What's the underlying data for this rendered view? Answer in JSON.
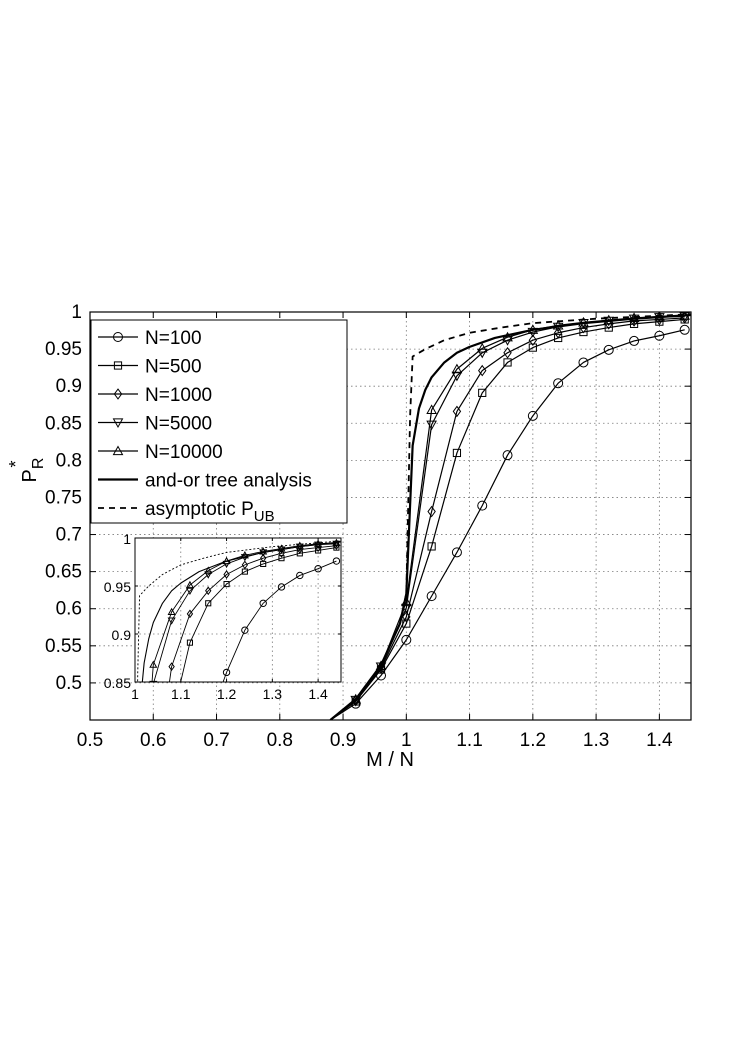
{
  "chart_data": {
    "type": "line",
    "title": "",
    "xlabel": "M / N",
    "ylabel_main": "P",
    "ylabel_sub": "R",
    "ylabel_sup": "*",
    "xlim": [
      0.5,
      1.45
    ],
    "ylim": [
      0.45,
      1.0
    ],
    "xticks": [
      0.5,
      0.6,
      0.7,
      0.8,
      0.9,
      1.0,
      1.1,
      1.2,
      1.3,
      1.4
    ],
    "xtick_labels": [
      "0.5",
      "0.6",
      "0.7",
      "0.8",
      "0.9",
      "1",
      "1.1",
      "1.2",
      "1.3",
      "1.4"
    ],
    "yticks": [
      0.5,
      0.55,
      0.6,
      0.65,
      0.7,
      0.75,
      0.8,
      0.85,
      0.9,
      0.95,
      1.0
    ],
    "ytick_labels": [
      "0.5",
      "0.55",
      "0.6",
      "0.65",
      "0.7",
      "0.75",
      "0.8",
      "0.85",
      "0.9",
      "0.95",
      "1"
    ],
    "grid": true,
    "legend_position": "top-left",
    "series": [
      {
        "name": "N=100",
        "marker": "circle",
        "line": "solid",
        "x": [
          0.88,
          0.92,
          0.96,
          1.0,
          1.04,
          1.08,
          1.12,
          1.16,
          1.2,
          1.24,
          1.28,
          1.32,
          1.36,
          1.4,
          1.44
        ],
        "y": [
          0.45,
          0.472,
          0.51,
          0.558,
          0.617,
          0.676,
          0.739,
          0.807,
          0.86,
          0.904,
          0.932,
          0.949,
          0.961,
          0.968,
          0.976
        ]
      },
      {
        "name": "N=500",
        "marker": "square",
        "line": "solid",
        "x": [
          0.88,
          0.92,
          0.96,
          1.0,
          1.04,
          1.08,
          1.12,
          1.16,
          1.2,
          1.24,
          1.28,
          1.32,
          1.36,
          1.4,
          1.44
        ],
        "y": [
          0.45,
          0.475,
          0.518,
          0.58,
          0.684,
          0.81,
          0.891,
          0.932,
          0.952,
          0.965,
          0.973,
          0.979,
          0.984,
          0.987,
          0.99
        ]
      },
      {
        "name": "N=1000",
        "marker": "diamond",
        "line": "solid",
        "x": [
          0.88,
          0.92,
          0.96,
          1.0,
          1.04,
          1.08,
          1.12,
          1.16,
          1.2,
          1.24,
          1.28,
          1.32,
          1.36,
          1.4,
          1.44
        ],
        "y": [
          0.45,
          0.476,
          0.52,
          0.589,
          0.731,
          0.866,
          0.921,
          0.945,
          0.962,
          0.972,
          0.979,
          0.984,
          0.988,
          0.99,
          0.992
        ]
      },
      {
        "name": "N=5000",
        "marker": "triangle-down",
        "line": "solid",
        "x": [
          0.88,
          0.92,
          0.96,
          1.0,
          1.04,
          1.08,
          1.12,
          1.16,
          1.2,
          1.24,
          1.28,
          1.32,
          1.36,
          1.4,
          1.44
        ],
        "y": [
          0.45,
          0.477,
          0.522,
          0.601,
          0.848,
          0.914,
          0.945,
          0.962,
          0.973,
          0.98,
          0.985,
          0.988,
          0.991,
          0.993,
          0.994
        ]
      },
      {
        "name": "N=10000",
        "marker": "triangle-up",
        "line": "solid",
        "x": [
          0.88,
          0.92,
          0.96,
          1.0,
          1.04,
          1.08,
          1.12,
          1.16,
          1.2,
          1.24,
          1.28,
          1.32,
          1.36,
          1.4,
          1.44
        ],
        "y": [
          0.45,
          0.478,
          0.523,
          0.609,
          0.868,
          0.923,
          0.951,
          0.966,
          0.976,
          0.982,
          0.986,
          0.989,
          0.992,
          0.994,
          0.995
        ]
      },
      {
        "name": "and-or tree analysis",
        "marker": "none",
        "line": "solid-bold",
        "x": [
          0.88,
          0.92,
          0.96,
          0.99,
          1.0,
          1.005,
          1.01,
          1.02,
          1.03,
          1.04,
          1.06,
          1.08,
          1.1,
          1.14,
          1.2,
          1.28,
          1.36,
          1.45
        ],
        "y": [
          0.45,
          0.478,
          0.524,
          0.58,
          0.62,
          0.72,
          0.82,
          0.87,
          0.895,
          0.912,
          0.932,
          0.945,
          0.953,
          0.965,
          0.976,
          0.985,
          0.991,
          0.996
        ]
      },
      {
        "name": "asymptotic P",
        "name_sub": "UB",
        "marker": "none",
        "line": "dashed",
        "x": [
          0.88,
          0.92,
          0.96,
          0.99,
          1.0,
          1.003,
          1.006,
          1.01,
          1.03,
          1.06,
          1.1,
          1.15,
          1.2,
          1.3,
          1.4,
          1.45
        ],
        "y": [
          0.45,
          0.478,
          0.524,
          0.58,
          0.62,
          0.74,
          0.86,
          0.94,
          0.95,
          0.962,
          0.972,
          0.979,
          0.985,
          0.991,
          0.995,
          0.997
        ]
      }
    ],
    "inset": {
      "xlim": [
        1.0,
        1.45
      ],
      "ylim": [
        0.85,
        1.0
      ],
      "xticks": [
        1.0,
        1.1,
        1.2,
        1.3,
        1.4
      ],
      "xtick_labels": [
        "1",
        "1.1",
        "1.2",
        "1.3",
        "1.4"
      ],
      "yticks": [
        0.85,
        0.9,
        0.95,
        1.0
      ],
      "ytick_labels": [
        "0.85",
        "0.9",
        "0.95",
        "1"
      ],
      "grid": true
    }
  }
}
